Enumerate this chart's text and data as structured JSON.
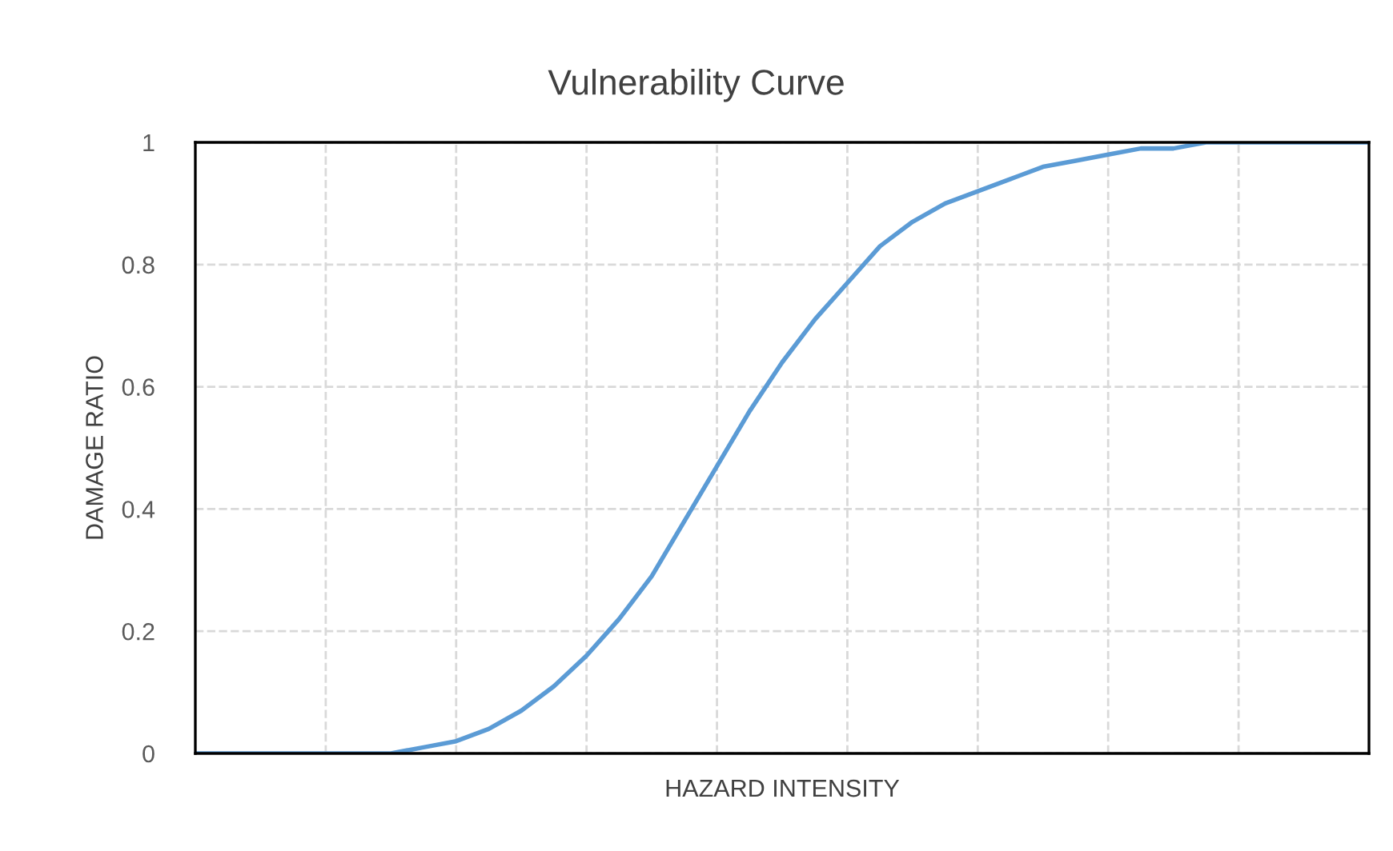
{
  "chart_data": {
    "type": "line",
    "title": "Vulnerability Curve",
    "xlabel": "HAZARD INTENSITY",
    "ylabel": "DAMAGE RATIO",
    "categories": [
      null,
      null,
      null,
      null,
      null,
      null,
      null,
      null,
      null,
      null,
      null,
      null,
      null,
      null,
      null,
      null,
      null,
      null,
      null,
      null,
      null,
      null,
      null,
      null,
      null,
      null,
      null,
      null,
      null,
      null,
      null,
      null,
      null,
      null,
      null,
      null,
      null
    ],
    "series": [
      {
        "color": "#5b9bd5",
        "values": [
          0,
          0,
          0,
          0,
          0,
          0,
          0,
          0.01,
          0.02,
          0.04,
          0.07,
          0.11,
          0.16,
          0.22,
          0.29,
          0.38,
          0.47,
          0.56,
          0.64,
          0.71,
          0.77,
          0.83,
          0.87,
          0.9,
          0.92,
          0.94,
          0.96,
          0.97,
          0.98,
          0.99,
          0.99,
          1,
          1,
          1,
          1,
          1,
          1
        ]
      }
    ],
    "ylim": [
      0,
      1
    ],
    "yticks": [
      0,
      0.2,
      0.4,
      0.6,
      0.8,
      1
    ],
    "grid": true,
    "marker": "none",
    "line_style": "solid",
    "legend": false
  }
}
